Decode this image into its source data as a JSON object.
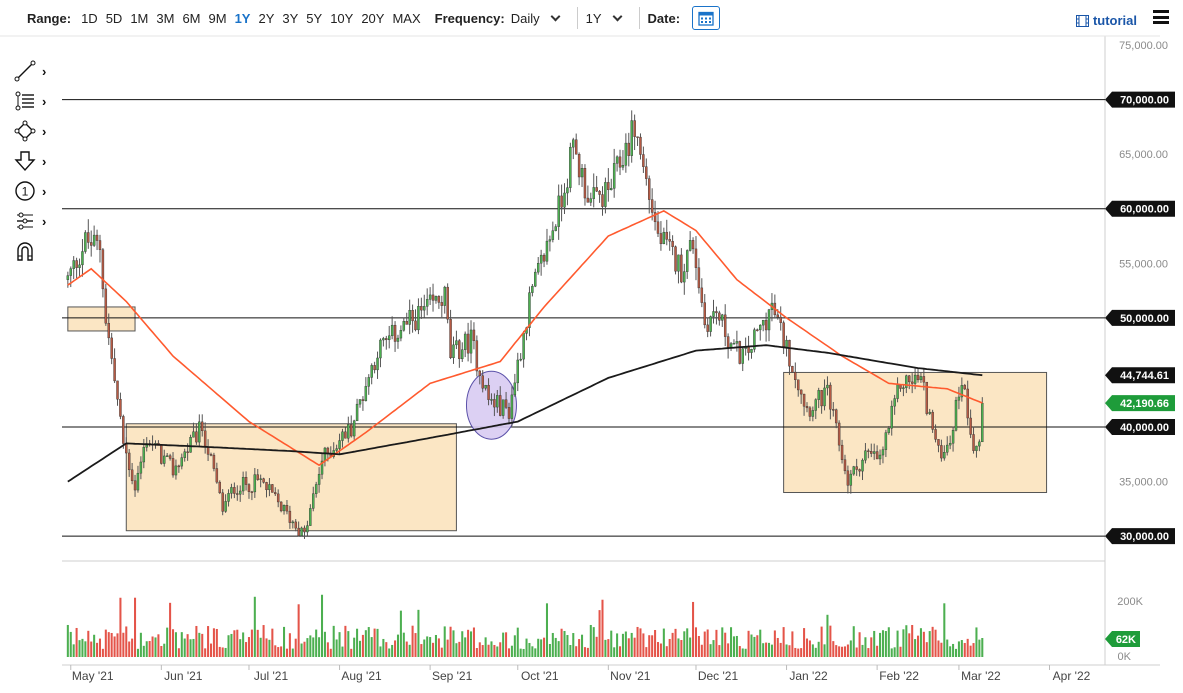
{
  "toolbar": {
    "range_label": "Range:",
    "ranges": [
      "1D",
      "5D",
      "1M",
      "3M",
      "6M",
      "9M",
      "1Y",
      "2Y",
      "3Y",
      "5Y",
      "10Y",
      "20Y",
      "MAX"
    ],
    "active_range": "1Y",
    "frequency_label": "Frequency:",
    "frequency_value": "Daily",
    "period_value": "1Y",
    "date_label": "Date:",
    "tutorial_label": "tutorial"
  },
  "tools": [
    {
      "icon": "trendline-icon"
    },
    {
      "icon": "fibonacci-icon"
    },
    {
      "icon": "shapes-icon"
    },
    {
      "icon": "arrow-down-icon"
    },
    {
      "icon": "annotation-icon"
    },
    {
      "icon": "pitchfork-icon"
    },
    {
      "icon": "magnet-icon"
    }
  ],
  "colors": {
    "up_candle": "#4caf50",
    "down_candle": "#b55a44",
    "ma_short": "#ff5a2e",
    "ma_long": "#1a1a1a",
    "box_fill": "#fbe6c4",
    "box_stroke": "#555555",
    "circle_fill": "#d9ccf2",
    "circle_stroke": "#4a3fa0",
    "tag_price": "#1e9c3a",
    "tag_volume": "#1e9c3a"
  },
  "chart_data": {
    "type": "candlestick",
    "y_ticks": [
      "75,000.00",
      "65,000.00",
      "55,000.00",
      "45,000.00",
      "35,000.00"
    ],
    "x_ticks": [
      "May '21",
      "Jun '21",
      "Jul '21",
      "Aug '21",
      "Sep '21",
      "Oct '21",
      "Nov '21",
      "Dec '21",
      "Jan '22",
      "Feb '22",
      "Mar '22",
      "Apr '22"
    ],
    "ylim": [
      28000,
      75000
    ],
    "level_tags": [
      "70,000.00",
      "60,000.00",
      "50,000.00",
      "44,744.61",
      "40,000.00",
      "30,000.00"
    ],
    "last_price": "42,190.66",
    "volume_ticks": [
      "200K",
      "0K"
    ],
    "volume_last": "62K",
    "horizontal_levels": [
      70000,
      60000,
      50000,
      40000,
      30000
    ],
    "boxes": [
      {
        "from": "2021-04-30",
        "to": "2021-05-23",
        "low": 48800,
        "high": 51000
      },
      {
        "from": "2021-05-20",
        "to": "2021-09-10",
        "low": 30500,
        "high": 40300
      },
      {
        "from": "2021-12-31",
        "to": "2022-03-31",
        "low": 34000,
        "high": 45000
      }
    ],
    "circle": {
      "date": "2021-09-22",
      "price": 42000
    },
    "ohlc_anchors": [
      [
        "2021-04-30",
        53500
      ],
      [
        "2021-05-06",
        57000
      ],
      [
        "2021-05-11",
        56500
      ],
      [
        "2021-05-13",
        50000
      ],
      [
        "2021-05-19",
        38500
      ],
      [
        "2021-05-23",
        34500
      ],
      [
        "2021-05-27",
        39000
      ],
      [
        "2021-06-05",
        36000
      ],
      [
        "2021-06-15",
        40000
      ],
      [
        "2021-06-22",
        32500
      ],
      [
        "2021-06-26",
        34500
      ],
      [
        "2021-07-05",
        35000
      ],
      [
        "2021-07-20",
        30000
      ],
      [
        "2021-07-26",
        37000
      ],
      [
        "2021-08-05",
        40000
      ],
      [
        "2021-08-14",
        47000
      ],
      [
        "2021-08-22",
        49000
      ],
      [
        "2021-09-06",
        52000
      ],
      [
        "2021-09-08",
        46500
      ],
      [
        "2021-09-15",
        48000
      ],
      [
        "2021-09-21",
        42500
      ],
      [
        "2021-09-28",
        41500
      ],
      [
        "2021-10-05",
        51500
      ],
      [
        "2021-10-15",
        60000
      ],
      [
        "2021-10-20",
        65500
      ],
      [
        "2021-10-26",
        60500
      ],
      [
        "2021-11-01",
        61500
      ],
      [
        "2021-11-10",
        67500
      ],
      [
        "2021-11-18",
        57500
      ],
      [
        "2021-11-26",
        54500
      ],
      [
        "2021-11-30",
        57000
      ],
      [
        "2021-12-04",
        49500
      ],
      [
        "2021-12-08",
        50500
      ],
      [
        "2021-12-14",
        47000
      ],
      [
        "2021-12-18",
        46500
      ],
      [
        "2021-12-27",
        51000
      ],
      [
        "2022-01-02",
        46500
      ],
      [
        "2022-01-08",
        41700
      ],
      [
        "2022-01-15",
        43000
      ],
      [
        "2022-01-22",
        35000
      ],
      [
        "2022-01-28",
        37500
      ],
      [
        "2022-02-02",
        37000
      ],
      [
        "2022-02-09",
        44000
      ],
      [
        "2022-02-16",
        44500
      ],
      [
        "2022-02-22",
        37500
      ],
      [
        "2022-02-26",
        39000
      ],
      [
        "2022-03-02",
        44500
      ],
      [
        "2022-03-06",
        38500
      ],
      [
        "2022-03-08",
        38500
      ],
      [
        "2022-03-09",
        42190
      ]
    ],
    "ma_short_anchors": [
      [
        "2021-04-30",
        53000
      ],
      [
        "2021-05-08",
        54500
      ],
      [
        "2021-05-20",
        51500
      ],
      [
        "2021-06-05",
        46500
      ],
      [
        "2021-07-01",
        40500
      ],
      [
        "2021-07-25",
        36500
      ],
      [
        "2021-08-10",
        39500
      ],
      [
        "2021-09-01",
        44000
      ],
      [
        "2021-09-25",
        46000
      ],
      [
        "2021-10-10",
        51000
      ],
      [
        "2021-11-01",
        57500
      ],
      [
        "2021-11-20",
        59800
      ],
      [
        "2021-12-01",
        58000
      ],
      [
        "2021-12-15",
        53500
      ],
      [
        "2022-01-01",
        50000
      ],
      [
        "2022-01-20",
        46500
      ],
      [
        "2022-02-05",
        44000
      ],
      [
        "2022-02-25",
        43500
      ],
      [
        "2022-03-09",
        42200
      ]
    ],
    "ma_long_anchors": [
      [
        "2021-04-30",
        35000
      ],
      [
        "2021-05-20",
        38500
      ],
      [
        "2021-06-15",
        38200
      ],
      [
        "2021-07-15",
        37800
      ],
      [
        "2021-08-01",
        37500
      ],
      [
        "2021-09-01",
        39000
      ],
      [
        "2021-10-01",
        40500
      ],
      [
        "2021-11-01",
        44500
      ],
      [
        "2021-12-01",
        47000
      ],
      [
        "2021-12-25",
        47500
      ],
      [
        "2022-01-15",
        46800
      ],
      [
        "2022-02-15",
        45400
      ],
      [
        "2022-03-09",
        44744
      ]
    ]
  }
}
